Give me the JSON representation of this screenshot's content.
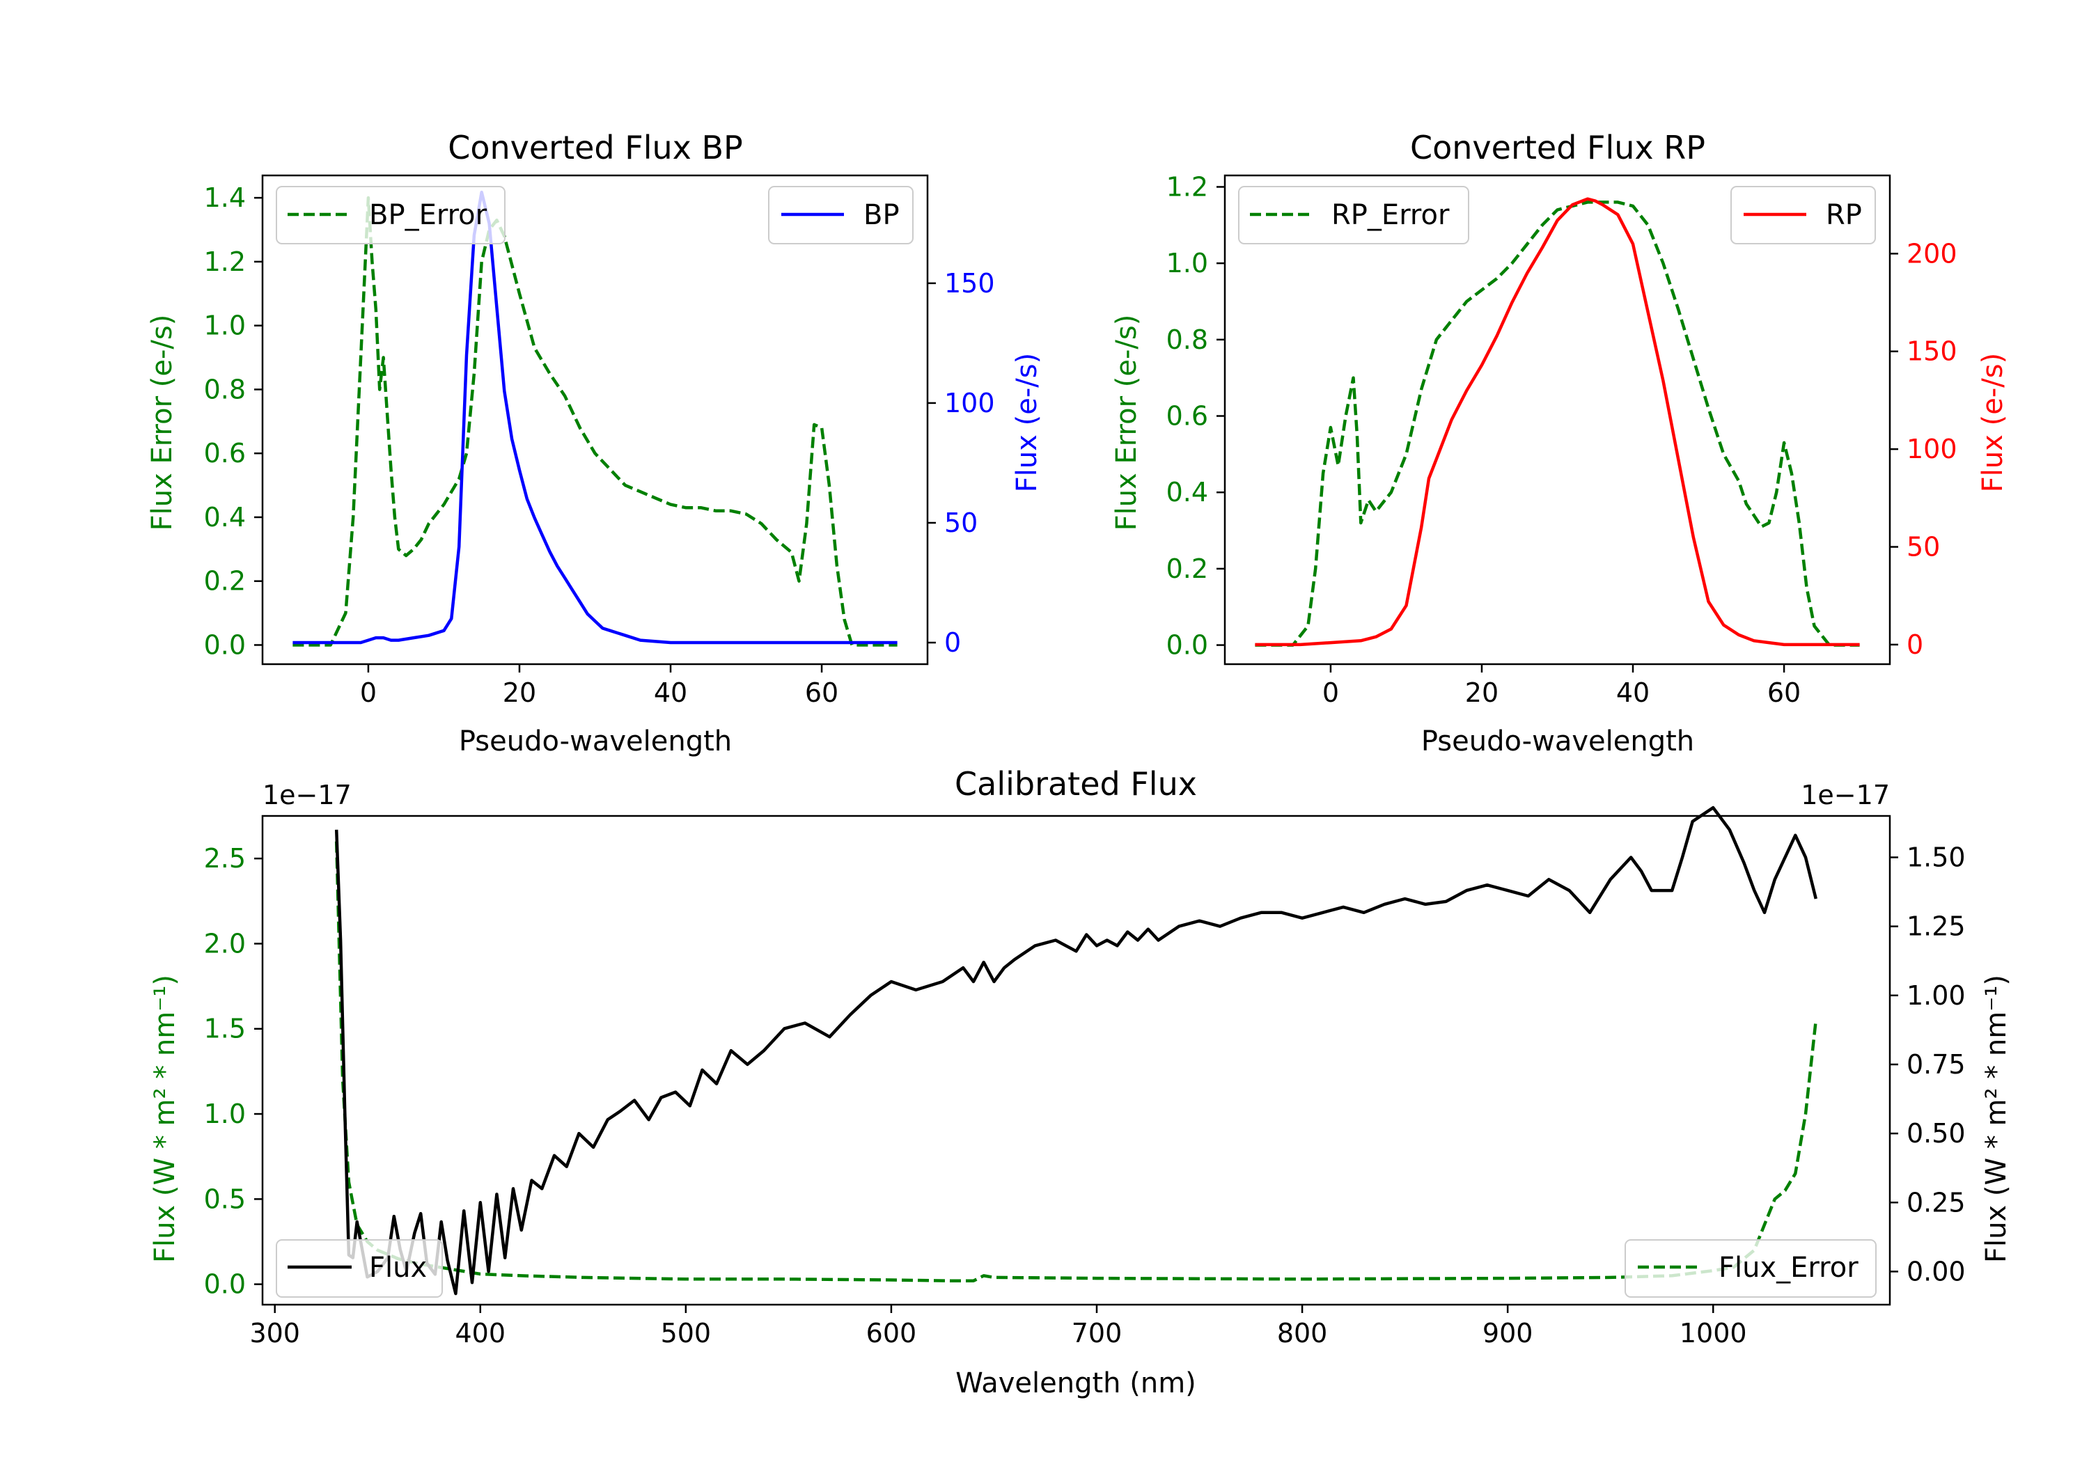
{
  "colors": {
    "error": "#008000",
    "bp": "#0000ff",
    "rp": "#ff0000",
    "flux": "#000000"
  },
  "chart_data": [
    {
      "id": "bp",
      "type": "line",
      "title": "Converted Flux BP",
      "xlabel": "Pseudo-wavelength",
      "ylabel_left": "Flux Error (e-/s)",
      "ylabel_right": "Flux (e-/s)",
      "xlim": [
        -14,
        74
      ],
      "ylim_left": [
        -0.06,
        1.47
      ],
      "ylim_right": [
        -9,
        195
      ],
      "xticks": [
        0,
        20,
        40,
        60
      ],
      "yticks_left": [
        "0.0",
        "0.2",
        "0.4",
        "0.6",
        "0.8",
        "1.0",
        "1.2",
        "1.4"
      ],
      "yticks_right": [
        "0",
        "50",
        "100",
        "150"
      ],
      "legend_left": "BP_Error",
      "legend_right": "BP",
      "series": [
        {
          "name": "BP_Error",
          "axis": "left",
          "style": "dashed",
          "color": "error",
          "x": [
            -10,
            -5,
            -3,
            -2,
            -1,
            0,
            0.5,
            1,
            1.5,
            2,
            3,
            3.5,
            4,
            5,
            6,
            7,
            8,
            10,
            12,
            13,
            14,
            15,
            16,
            17,
            18,
            20,
            22,
            24,
            26,
            28,
            30,
            32,
            34,
            36,
            38,
            40,
            42,
            44,
            46,
            48,
            50,
            52,
            54,
            56,
            57,
            58,
            59,
            60,
            61,
            62,
            63,
            64,
            66,
            70
          ],
          "y": [
            0.0,
            0.0,
            0.1,
            0.4,
            0.9,
            1.4,
            1.2,
            1.05,
            0.8,
            0.9,
            0.55,
            0.4,
            0.3,
            0.28,
            0.3,
            0.33,
            0.38,
            0.44,
            0.52,
            0.6,
            0.85,
            1.2,
            1.3,
            1.33,
            1.28,
            1.1,
            0.93,
            0.85,
            0.78,
            0.68,
            0.6,
            0.55,
            0.5,
            0.48,
            0.46,
            0.44,
            0.43,
            0.43,
            0.42,
            0.42,
            0.41,
            0.38,
            0.33,
            0.29,
            0.2,
            0.38,
            0.69,
            0.68,
            0.5,
            0.25,
            0.08,
            0.0,
            0.0,
            0.0
          ]
        },
        {
          "name": "BP",
          "axis": "right",
          "style": "solid",
          "color": "bp",
          "x": [
            -10,
            -3,
            -1,
            0,
            1,
            2,
            3,
            4,
            6,
            8,
            10,
            11,
            12,
            13,
            14,
            15,
            16,
            17,
            18,
            19,
            20,
            21,
            22,
            23,
            24,
            25,
            26,
            27,
            28,
            29,
            30,
            31,
            32,
            34,
            36,
            40,
            44,
            48,
            52,
            56,
            60,
            64,
            68,
            70
          ],
          "y": [
            0,
            0,
            0,
            1,
            2,
            2,
            1,
            1,
            2,
            3,
            5,
            10,
            40,
            120,
            170,
            188,
            175,
            140,
            105,
            85,
            72,
            60,
            52,
            45,
            38,
            32,
            27,
            22,
            17,
            12,
            9,
            6,
            5,
            3,
            1,
            0,
            0,
            0,
            0,
            0,
            0,
            0,
            0,
            0
          ]
        }
      ]
    },
    {
      "id": "rp",
      "type": "line",
      "title": "Converted Flux RP",
      "xlabel": "Pseudo-wavelength",
      "ylabel_left": "Flux Error (e-/s)",
      "ylabel_right": "Flux (e-/s)",
      "xlim": [
        -14,
        74
      ],
      "ylim_left": [
        -0.05,
        1.23
      ],
      "ylim_right": [
        -10,
        240
      ],
      "xticks": [
        0,
        20,
        40,
        60
      ],
      "yticks_left": [
        "0.0",
        "0.2",
        "0.4",
        "0.6",
        "0.8",
        "1.0",
        "1.2"
      ],
      "yticks_right": [
        "0",
        "50",
        "100",
        "150",
        "200"
      ],
      "legend_left": "RP_Error",
      "legend_right": "RP",
      "series": [
        {
          "name": "RP_Error",
          "axis": "left",
          "style": "dashed",
          "color": "error",
          "x": [
            -10,
            -5,
            -3,
            -2,
            -1,
            0,
            1,
            2,
            3,
            3.5,
            4,
            5,
            6,
            8,
            10,
            12,
            14,
            16,
            18,
            20,
            22,
            24,
            26,
            28,
            30,
            32,
            34,
            36,
            38,
            40,
            42,
            44,
            46,
            48,
            50,
            52,
            54,
            55,
            56,
            57,
            58,
            59,
            60,
            61,
            62,
            63,
            64,
            66,
            70
          ],
          "y": [
            0.0,
            0.0,
            0.05,
            0.2,
            0.45,
            0.57,
            0.47,
            0.6,
            0.7,
            0.55,
            0.32,
            0.38,
            0.35,
            0.4,
            0.5,
            0.67,
            0.8,
            0.85,
            0.9,
            0.93,
            0.96,
            1.0,
            1.05,
            1.1,
            1.14,
            1.15,
            1.16,
            1.16,
            1.16,
            1.15,
            1.1,
            1.0,
            0.88,
            0.75,
            0.62,
            0.5,
            0.43,
            0.37,
            0.34,
            0.31,
            0.32,
            0.4,
            0.53,
            0.45,
            0.32,
            0.15,
            0.05,
            0.0,
            0.0
          ]
        },
        {
          "name": "RP",
          "axis": "right",
          "style": "solid",
          "color": "rp",
          "x": [
            -10,
            -4,
            0,
            4,
            6,
            8,
            10,
            12,
            13,
            14,
            16,
            18,
            20,
            22,
            24,
            26,
            28,
            30,
            32,
            34,
            35,
            36,
            38,
            40,
            42,
            44,
            46,
            48,
            50,
            52,
            54,
            56,
            58,
            60,
            62,
            66,
            70
          ],
          "y": [
            0,
            0,
            1,
            2,
            4,
            8,
            20,
            60,
            85,
            95,
            115,
            130,
            143,
            158,
            175,
            190,
            203,
            217,
            225,
            228,
            227,
            225,
            220,
            205,
            170,
            135,
            95,
            55,
            22,
            10,
            5,
            2,
            1,
            0,
            0,
            0,
            0
          ]
        }
      ]
    },
    {
      "id": "calibrated",
      "type": "line",
      "title": "Calibrated Flux",
      "xlabel": "Wavelength (nm)",
      "ylabel_left": "Flux (W * m² * nm⁻¹)",
      "ylabel_right": "Flux (W * m² * nm⁻¹)",
      "offset_left": "1e−17",
      "offset_right": "1e−17",
      "xlim": [
        294,
        1086
      ],
      "ylim_left": [
        -0.12,
        2.75
      ],
      "ylim_right": [
        -0.12,
        1.65
      ],
      "xticks": [
        300,
        400,
        500,
        600,
        700,
        800,
        900,
        1000
      ],
      "yticks_left": [
        "0.0",
        "0.5",
        "1.0",
        "1.5",
        "2.0",
        "2.5"
      ],
      "yticks_right": [
        "0.00",
        "0.25",
        "0.50",
        "0.75",
        "1.00",
        "1.25",
        "1.50"
      ],
      "legend_left": "Flux",
      "legend_right": "Flux_Error",
      "series": [
        {
          "name": "Flux_Error",
          "axis": "left",
          "style": "dashed",
          "color": "error",
          "x": [
            330,
            333,
            336,
            340,
            345,
            350,
            360,
            370,
            380,
            390,
            400,
            420,
            450,
            500,
            550,
            600,
            630,
            640,
            645,
            650,
            700,
            800,
            900,
            950,
            980,
            1000,
            1010,
            1020,
            1025,
            1030,
            1035,
            1040,
            1045,
            1050
          ],
          "y": [
            2.6,
            1.2,
            0.6,
            0.35,
            0.25,
            0.2,
            0.15,
            0.12,
            0.1,
            0.08,
            0.06,
            0.05,
            0.04,
            0.03,
            0.03,
            0.025,
            0.02,
            0.02,
            0.05,
            0.04,
            0.035,
            0.03,
            0.035,
            0.04,
            0.05,
            0.08,
            0.1,
            0.2,
            0.35,
            0.5,
            0.55,
            0.65,
            1.0,
            1.55
          ]
        },
        {
          "name": "Flux",
          "axis": "right",
          "style": "solid",
          "color": "flux",
          "x": [
            330,
            332,
            334,
            336,
            338,
            340,
            342,
            345,
            350,
            355,
            358,
            361,
            364,
            368,
            371,
            374,
            378,
            381,
            384,
            388,
            392,
            396,
            400,
            404,
            408,
            412,
            416,
            420,
            425,
            430,
            436,
            442,
            448,
            455,
            462,
            468,
            475,
            482,
            488,
            495,
            502,
            508,
            515,
            522,
            530,
            538,
            548,
            558,
            570,
            580,
            590,
            600,
            612,
            625,
            635,
            640,
            645,
            650,
            655,
            660,
            670,
            680,
            690,
            695,
            700,
            705,
            710,
            715,
            720,
            725,
            730,
            740,
            750,
            760,
            770,
            780,
            790,
            800,
            810,
            820,
            830,
            840,
            850,
            860,
            870,
            880,
            890,
            900,
            910,
            920,
            930,
            940,
            950,
            960,
            965,
            970,
            980,
            985,
            990,
            1000,
            1008,
            1015,
            1020,
            1025,
            1030,
            1040,
            1045,
            1050
          ],
          "y": [
            1.6,
            1.2,
            0.6,
            0.06,
            0.05,
            0.18,
            0.1,
            -0.02,
            0.0,
            0.05,
            0.2,
            0.08,
            0.0,
            0.14,
            0.21,
            0.03,
            -0.01,
            0.18,
            0.04,
            -0.08,
            0.22,
            -0.04,
            0.25,
            0.0,
            0.28,
            0.05,
            0.3,
            0.15,
            0.33,
            0.3,
            0.42,
            0.38,
            0.5,
            0.45,
            0.55,
            0.58,
            0.62,
            0.55,
            0.63,
            0.65,
            0.6,
            0.73,
            0.68,
            0.8,
            0.75,
            0.8,
            0.88,
            0.9,
            0.85,
            0.93,
            1.0,
            1.05,
            1.02,
            1.05,
            1.1,
            1.05,
            1.12,
            1.05,
            1.1,
            1.13,
            1.18,
            1.2,
            1.16,
            1.22,
            1.18,
            1.2,
            1.18,
            1.23,
            1.2,
            1.24,
            1.2,
            1.25,
            1.27,
            1.25,
            1.28,
            1.3,
            1.3,
            1.28,
            1.3,
            1.32,
            1.3,
            1.33,
            1.35,
            1.33,
            1.34,
            1.38,
            1.4,
            1.38,
            1.36,
            1.42,
            1.38,
            1.3,
            1.42,
            1.5,
            1.45,
            1.38,
            1.38,
            1.5,
            1.63,
            1.68,
            1.6,
            1.48,
            1.38,
            1.3,
            1.42,
            1.58,
            1.5,
            1.35
          ]
        }
      ]
    }
  ]
}
